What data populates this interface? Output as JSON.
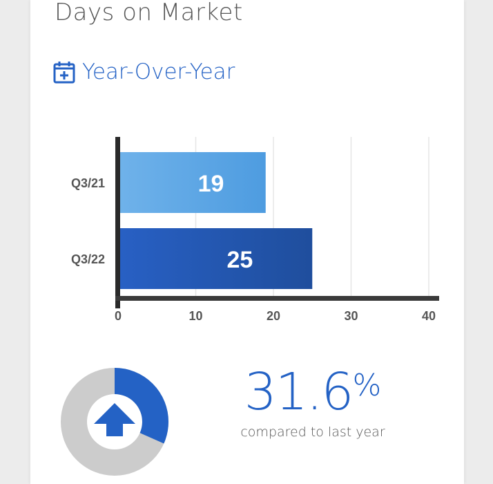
{
  "header": {
    "title": "Days on Market",
    "section_label": "Year-Over-Year",
    "section_icon": "calendar-plus-icon"
  },
  "chart_data": {
    "type": "bar",
    "orientation": "horizontal",
    "categories": [
      "Q3/21",
      "Q3/22"
    ],
    "values": [
      19,
      25
    ],
    "value_labels": [
      "19",
      "25"
    ],
    "xlim": [
      0,
      40
    ],
    "ticks": [
      "0",
      "10",
      "20",
      "30",
      "40"
    ],
    "tick_values": [
      0,
      10,
      20,
      30,
      40
    ],
    "grid": true,
    "colors": [
      "#5aa5e3",
      "#2257b4"
    ]
  },
  "summary": {
    "percent": "31.6",
    "percent_symbol": "%",
    "caption": "compared to last year",
    "direction_icon": "arrow-up-icon",
    "donut_fraction": 0.316,
    "accent_color": "#2462c5"
  }
}
